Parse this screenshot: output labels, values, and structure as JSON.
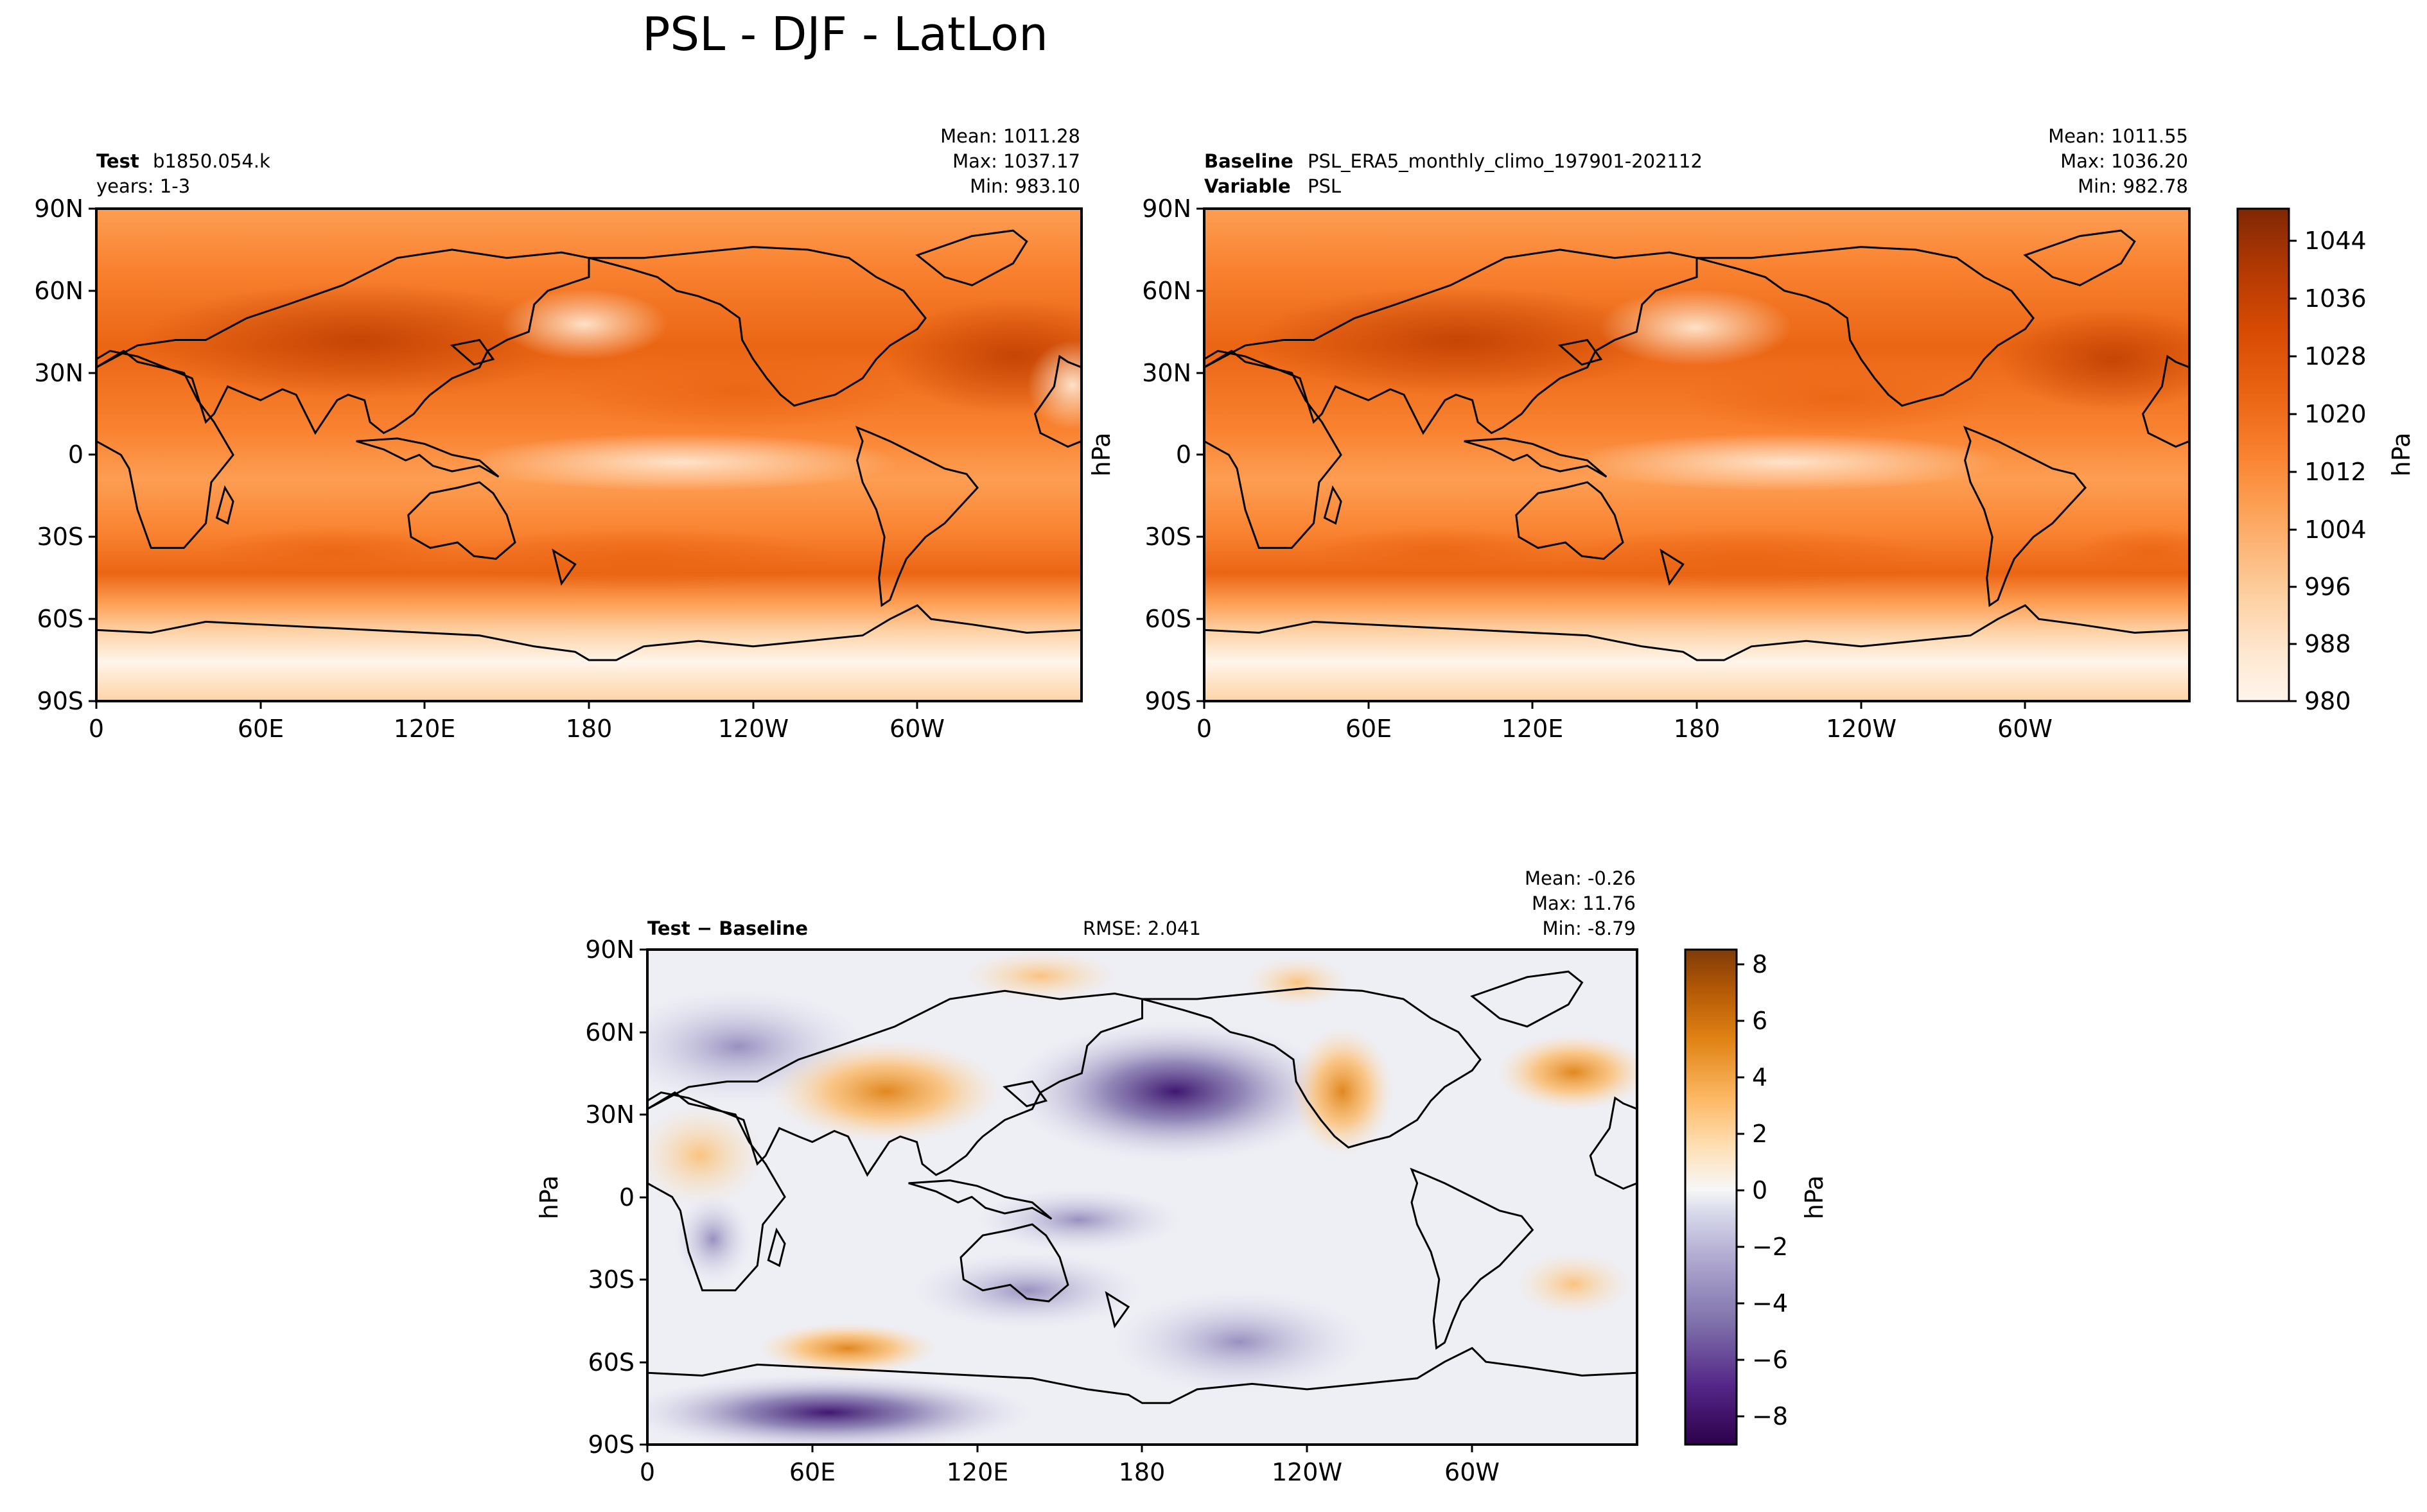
{
  "title": "PSL - DJF - LatLon",
  "colors": {
    "oranges": [
      "#fff5eb",
      "#ffe7d0",
      "#fdd3a7",
      "#fdb97d",
      "#fd9e53",
      "#f98230",
      "#ea6514",
      "#d84b03",
      "#b53a03",
      "#8a2c04",
      "#7f2704"
    ],
    "puor": [
      "#2d004b",
      "#542788",
      "#8073ac",
      "#b2abd2",
      "#d8daeb",
      "#f7f7f7",
      "#fee0b6",
      "#fdb863",
      "#e08214",
      "#b35806",
      "#7f3b08"
    ]
  },
  "chart_data": [
    {
      "id": "test",
      "type": "heatmap",
      "name_label": "Test",
      "name_value": "b1850.054.k",
      "second_line": "years: 1-3",
      "stats": {
        "mean": "Mean: 1011.28",
        "max": "Max: 1037.17",
        "min": "Min: 983.10"
      },
      "xticks": [
        "0",
        "60E",
        "120E",
        "180",
        "120W",
        "60W"
      ],
      "yticks": [
        "90N",
        "60N",
        "30N",
        "0",
        "30S",
        "60S",
        "90S"
      ],
      "xlim": [
        0,
        360
      ],
      "ylim": [
        -90,
        90
      ],
      "units_label": "",
      "value_range": [
        980,
        1048
      ]
    },
    {
      "id": "baseline",
      "type": "heatmap",
      "name_label": "Baseline",
      "name_value": "PSL_ERA5_monthly_climo_197901-202112",
      "variable_label": "Variable",
      "variable_value": "PSL",
      "stats": {
        "mean": "Mean: 1011.55",
        "max": "Max: 1036.20",
        "min": "Min: 982.78"
      },
      "xticks": [
        "0",
        "60E",
        "120E",
        "180",
        "120W",
        "60W"
      ],
      "yticks": [
        "90N",
        "60N",
        "30N",
        "0",
        "30S",
        "60S",
        "90S"
      ],
      "xlim": [
        0,
        360
      ],
      "ylim": [
        -90,
        90
      ],
      "units_label": "hPa",
      "colorbar": {
        "ticks": [
          "1044",
          "1036",
          "1028",
          "1020",
          "1012",
          "1004",
          "996",
          "988",
          "980"
        ],
        "range": [
          980,
          1048
        ],
        "label": "hPa"
      }
    },
    {
      "id": "diff",
      "type": "heatmap",
      "name_label": "Test − Baseline",
      "rmse": "RMSE: 2.041",
      "stats": {
        "mean": "Mean: -0.26",
        "max": "Max: 11.76",
        "min": "Min: -8.79"
      },
      "xticks": [
        "0",
        "60E",
        "120E",
        "180",
        "120W",
        "60W"
      ],
      "yticks": [
        "90N",
        "60N",
        "30N",
        "0",
        "30S",
        "60S",
        "90S"
      ],
      "xlim": [
        0,
        360
      ],
      "ylim": [
        -90,
        90
      ],
      "units_label": "hPa",
      "colorbar": {
        "ticks": [
          "8",
          "6",
          "4",
          "2",
          "0",
          "−2",
          "−4",
          "−6",
          "−8"
        ],
        "range": [
          -9,
          8.5
        ],
        "label": "hPa"
      }
    }
  ]
}
